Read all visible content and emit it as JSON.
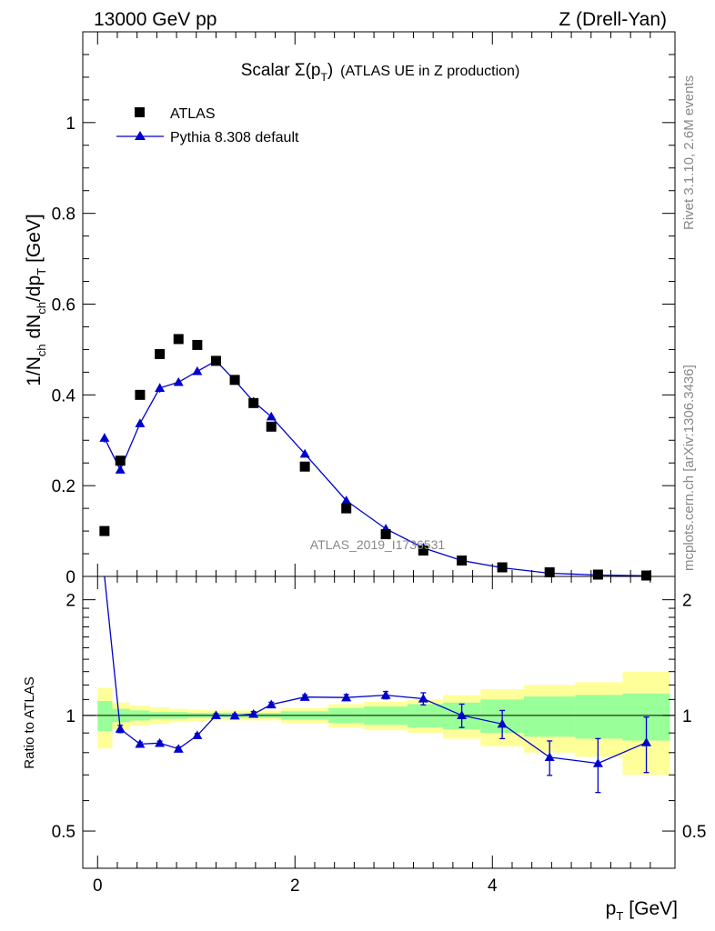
{
  "header": {
    "left": "13000 GeV pp",
    "right": "Z (Drell-Yan)"
  },
  "side_labels": {
    "rivet": "Rivet 3.1.10,  2.6M events",
    "mcplots": "mcplots.cern.ch [arXiv:1306.3436]"
  },
  "chart_data": [
    {
      "type": "scatter",
      "panel": "main",
      "title": "Scalar Σ(p_T) (ATLAS UE in Z production)",
      "title_parts": {
        "main": "Scalar ",
        "sigma": "Σ(p",
        "sub": "T",
        "close": ")",
        "tail": "(ATLAS UE in Z production)"
      },
      "xlabel": "p_T [GeV]",
      "xlabel_parts": {
        "main": "p",
        "sub": "T",
        "unit": "[GeV]"
      },
      "ylabel": "1/N_ch dN_ch/dp_T [GeV]",
      "ylabel_parts": {
        "a": "1/N",
        "a_sub": "ch",
        "b": " dN",
        "b_sub": "ch",
        "c": "/dp",
        "c_sub": "T",
        "d": " [GeV]"
      },
      "xlim": [
        -0.15,
        5.85
      ],
      "ylim": [
        0,
        1.2
      ],
      "yticks": [
        0,
        0.2,
        0.4,
        0.6,
        0.8,
        1
      ],
      "ytick_labels": [
        "0",
        "0.2",
        "0.4",
        "0.6",
        "0.8",
        "1"
      ],
      "watermark": "ATLAS_2019_I1736531",
      "legend_position": "top-left",
      "x": [
        0.07,
        0.23,
        0.43,
        0.63,
        0.82,
        1.01,
        1.2,
        1.39,
        1.58,
        1.76,
        2.1,
        2.52,
        2.92,
        3.3,
        3.69,
        4.1,
        4.58,
        5.07,
        5.56
      ],
      "series": [
        {
          "name": "ATLAS",
          "marker": "square",
          "color": "#000000",
          "values": [
            0.1,
            0.255,
            0.4,
            0.49,
            0.523,
            0.51,
            0.475,
            0.433,
            0.382,
            0.33,
            0.242,
            0.15,
            0.093,
            0.057,
            0.035,
            0.02,
            0.009,
            0.004,
            0.002
          ]
        },
        {
          "name": "Pythia 8.308 default",
          "marker": "triangle",
          "color": "#0000cc",
          "values": [
            0.305,
            0.235,
            0.337,
            0.415,
            0.428,
            0.452,
            0.475,
            0.432,
            0.385,
            0.352,
            0.27,
            0.167,
            0.105,
            0.063,
            0.035,
            0.019,
            0.007,
            0.003,
            0.0015
          ],
          "errors": [
            0.01,
            0.008,
            0.005,
            0.01,
            0.008,
            0.008,
            0.008,
            0.006,
            0.005,
            0.005,
            0.003,
            0.003,
            0.002,
            0.002,
            0.001,
            0.001,
            0.001,
            0.001,
            0.001
          ]
        }
      ]
    },
    {
      "type": "line",
      "panel": "ratio",
      "ylabel": "Ratio to ATLAS",
      "xlabel": "p_T [GeV]",
      "xlim": [
        -0.15,
        5.85
      ],
      "ylim": [
        0.4,
        2.3
      ],
      "yticks": [
        0.5,
        1,
        2
      ],
      "ytick_labels": [
        "0.5",
        "1",
        "2"
      ],
      "xticks": [
        0,
        2,
        4
      ],
      "xtick_labels": [
        "0",
        "2",
        "4"
      ],
      "bands": {
        "edges": [
          0,
          0.15,
          0.33,
          0.53,
          0.73,
          0.91,
          1.11,
          1.3,
          1.49,
          1.67,
          1.86,
          2.34,
          2.7,
          3.14,
          3.5,
          3.88,
          4.32,
          4.84,
          5.32,
          5.8
        ],
        "inner": [
          [
            0.91,
            1.09
          ],
          [
            0.96,
            1.04
          ],
          [
            0.97,
            1.03
          ],
          [
            0.98,
            1.02
          ],
          [
            0.98,
            1.02
          ],
          [
            0.985,
            1.015
          ],
          [
            0.985,
            1.015
          ],
          [
            0.985,
            1.015
          ],
          [
            0.985,
            1.015
          ],
          [
            0.985,
            1.015
          ],
          [
            0.975,
            1.025
          ],
          [
            0.955,
            1.045
          ],
          [
            0.945,
            1.055
          ],
          [
            0.93,
            1.07
          ],
          [
            0.92,
            1.08
          ],
          [
            0.9,
            1.1
          ],
          [
            0.88,
            1.12
          ],
          [
            0.87,
            1.13
          ],
          [
            0.86,
            1.14
          ]
        ],
        "outer": [
          [
            0.82,
            1.18
          ],
          [
            0.92,
            1.08
          ],
          [
            0.94,
            1.06
          ],
          [
            0.95,
            1.05
          ],
          [
            0.96,
            1.04
          ],
          [
            0.965,
            1.035
          ],
          [
            0.97,
            1.03
          ],
          [
            0.97,
            1.03
          ],
          [
            0.97,
            1.03
          ],
          [
            0.97,
            1.03
          ],
          [
            0.955,
            1.045
          ],
          [
            0.93,
            1.07
          ],
          [
            0.915,
            1.085
          ],
          [
            0.9,
            1.1
          ],
          [
            0.87,
            1.13
          ],
          [
            0.83,
            1.17
          ],
          [
            0.8,
            1.2
          ],
          [
            0.78,
            1.22
          ],
          [
            0.7,
            1.3
          ]
        ],
        "inner_color": "#99ff99",
        "outer_color": "#ffff99"
      },
      "x": [
        0.07,
        0.23,
        0.43,
        0.63,
        0.82,
        1.01,
        1.2,
        1.39,
        1.58,
        1.76,
        2.1,
        2.52,
        2.92,
        3.3,
        3.69,
        4.1,
        4.58,
        5.07,
        5.56
      ],
      "series": [
        {
          "name": "Pythia 8.308 default",
          "marker": "triangle",
          "color": "#0000cc",
          "values": [
            3.05,
            0.922,
            0.842,
            0.847,
            0.818,
            0.887,
            1.0,
            0.998,
            1.008,
            1.067,
            1.116,
            1.113,
            1.129,
            1.105,
            1.0,
            0.95,
            0.778,
            0.75,
            0.85
          ],
          "errors": [
            0,
            0.02,
            0.01,
            0.01,
            0.01,
            0.01,
            0.01,
            0.01,
            0.015,
            0.015,
            0.015,
            0.02,
            0.025,
            0.04,
            0.07,
            0.08,
            0.08,
            0.12,
            0.14
          ]
        }
      ]
    }
  ]
}
